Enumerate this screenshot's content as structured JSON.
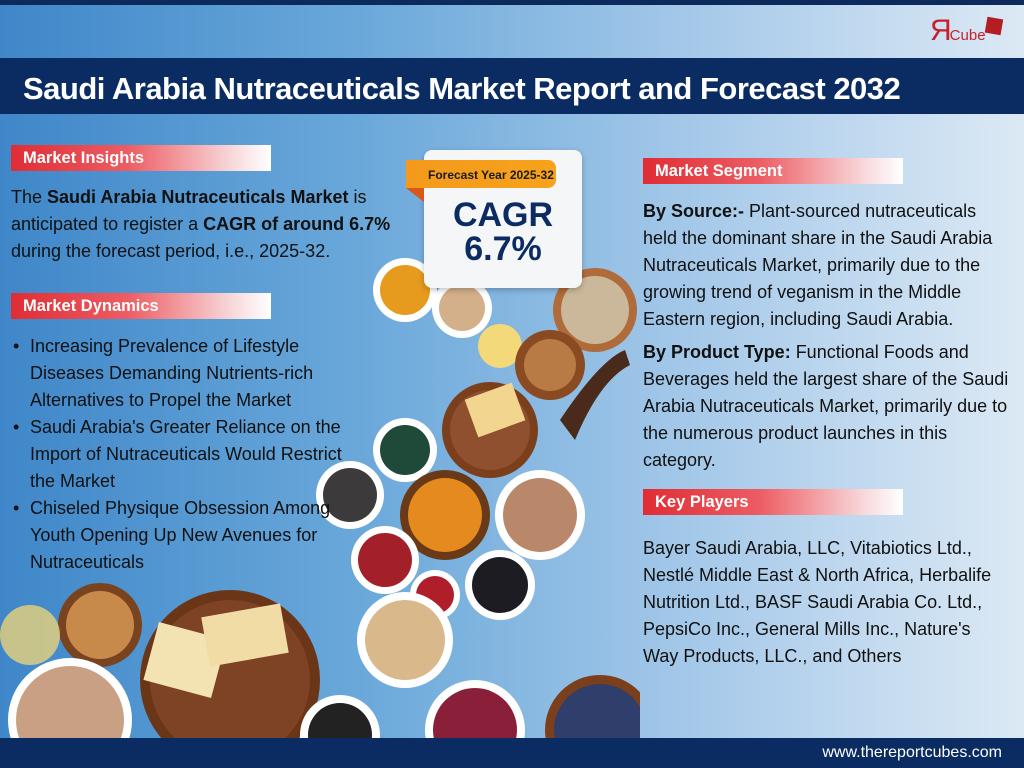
{
  "brand": {
    "logo_text": "ЯCube"
  },
  "title": "Saudi Arabia Nutraceuticals Market Report and Forecast 2032",
  "insights": {
    "heading": "Market Insights",
    "p1": "The ",
    "b1": "Saudi Arabia Nutraceuticals Market",
    "p2": " is anticipated to register a ",
    "b2": "CAGR of around 6.7%",
    "p3": " during the forecast period, i.e., 2025-32."
  },
  "cagr_card": {
    "ribbon": "Forecast Year 2025-32",
    "label": "CAGR",
    "value": "6.7%"
  },
  "dynamics": {
    "heading": "Market Dynamics",
    "items": [
      "Increasing Prevalence of Lifestyle Diseases Demanding Nutrients-rich Alternatives to Propel the Market",
      "Saudi Arabia's Greater Reliance on the Import of Nutraceuticals Would Restrict the Market",
      "Chiseled Physique Obsession Among Youth Opening Up New Avenues for Nutraceuticals"
    ]
  },
  "segment": {
    "heading": "Market Segment",
    "source_label": "By Source:-",
    "source_text": " Plant-sourced nutraceuticals held the dominant share in the Saudi Arabia Nutraceuticals Market, primarily due to the growing trend of veganism in the Middle Eastern region, including Saudi Arabia.",
    "product_label": "By Product Type:",
    "product_text": " Functional Foods and Beverages held the largest share of the Saudi Arabia Nutraceuticals Market, primarily due to the numerous product launches in this category."
  },
  "players": {
    "heading": "Key Players",
    "text": "Bayer Saudi Arabia, LLC, Vitabiotics Ltd., Nestlé Middle East & North Africa, Herbalife Nutrition Ltd., BASF Saudi Arabia Co. Ltd., PepsiCo Inc., General Mills Inc., Nature's Way Products, LLC., and Others"
  },
  "footer": {
    "url": "www.thereportcubes.com"
  },
  "colors": {
    "navy": "#0b2c62",
    "red": "#e02d35",
    "orange": "#f39a1c"
  }
}
